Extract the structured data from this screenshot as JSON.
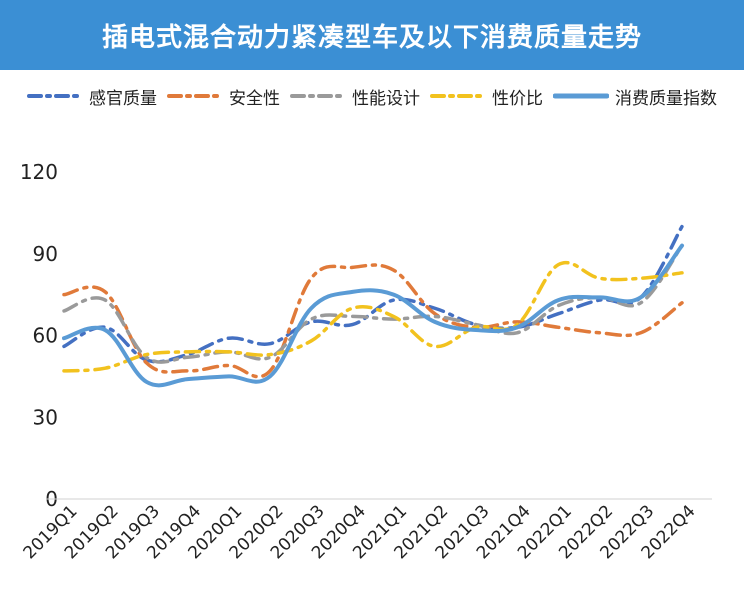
{
  "page": {
    "title": "插电式混合动力紧凑型车及以下消费质量走势"
  },
  "colors": {
    "title_bg": "#3b8fd4",
    "series": [
      "#4470c2",
      "#e07a3a",
      "#9a9a9a",
      "#f2c21e",
      "#5a9bd5"
    ]
  },
  "chart_data": {
    "type": "line",
    "title": "插电式混合动力紧凑型车及以下消费质量走势",
    "xlabel": "",
    "ylabel": "",
    "ylim": [
      0,
      120
    ],
    "yticks": [
      0,
      30,
      60,
      90,
      120
    ],
    "grid": false,
    "legend_position": "top",
    "categories": [
      "2019Q1",
      "2019Q2",
      "2019Q3",
      "2019Q4",
      "2020Q1",
      "2020Q2",
      "2020Q3",
      "2020Q4",
      "2021Q1",
      "2021Q2",
      "2021Q3",
      "2021Q4",
      "2022Q1",
      "2022Q2",
      "2022Q3",
      "2022Q4"
    ],
    "series": [
      {
        "name": "感官质量",
        "style": "dash-dot",
        "values": [
          56,
          63,
          51,
          53,
          59,
          57,
          65,
          64,
          73,
          70,
          64,
          63,
          68,
          73,
          74,
          100
        ]
      },
      {
        "name": "安全性",
        "style": "dash-dot",
        "values": [
          75,
          76,
          50,
          47,
          49,
          47,
          81,
          85,
          84,
          68,
          63,
          65,
          63,
          61,
          61,
          72
        ]
      },
      {
        "name": "性能设计",
        "style": "dash-dot",
        "values": [
          69,
          73,
          52,
          52,
          54,
          52,
          66,
          67,
          66,
          67,
          64,
          61,
          71,
          74,
          72,
          93
        ]
      },
      {
        "name": "性价比",
        "style": "dash-dot",
        "values": [
          47,
          48,
          53,
          54,
          54,
          53,
          58,
          70,
          67,
          56,
          63,
          64,
          86,
          81,
          81,
          83
        ]
      },
      {
        "name": "消费质量指数",
        "style": "solid",
        "values": [
          59,
          62,
          43,
          44,
          45,
          45,
          70,
          76,
          75,
          65,
          62,
          63,
          73,
          74,
          74,
          93
        ]
      }
    ]
  }
}
